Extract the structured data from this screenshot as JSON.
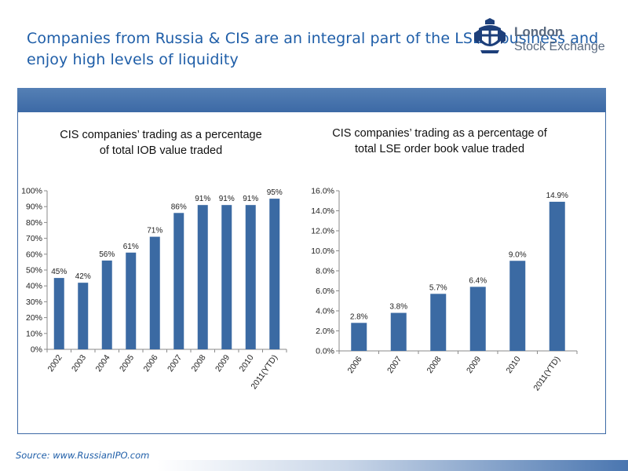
{
  "slide": {
    "title": "Companies from Russia & CIS are an integral part of the LSE’s business and enjoy high levels of liquidity",
    "source": "Source: www.RussianIPO.com"
  },
  "logo": {
    "line1": "London",
    "line2": "Stock Exchange",
    "icon": "lse-crest-icon"
  },
  "colors": {
    "bar": "#3b6aa3",
    "title": "#1f5ea8",
    "header_bar": "#4a76b0"
  },
  "chart_data": [
    {
      "type": "bar",
      "title": "CIS companies’ trading as a percentage\nof total IOB value traded",
      "categories": [
        "2002",
        "2003",
        "2004",
        "2005",
        "2006",
        "2007",
        "2008",
        "2009",
        "2010",
        "2011(YTD)"
      ],
      "values": [
        45,
        42,
        56,
        61,
        71,
        86,
        91,
        91,
        91,
        95
      ],
      "value_labels": [
        "45%",
        "42%",
        "56%",
        "61%",
        "71%",
        "86%",
        "91%",
        "91%",
        "91%",
        "95%"
      ],
      "yticks": [
        "0%",
        "10%",
        "20%",
        "30%",
        "40%",
        "50%",
        "60%",
        "70%",
        "80%",
        "90%",
        "100%"
      ],
      "ylim": [
        0,
        100
      ],
      "grid": false,
      "legend": "none"
    },
    {
      "type": "bar",
      "title": "CIS companies’ trading as a percentage of\ntotal LSE order book value traded",
      "categories": [
        "2006",
        "2007",
        "2008",
        "2009",
        "2010",
        "2011(YTD)"
      ],
      "values": [
        2.8,
        3.8,
        5.7,
        6.4,
        9.0,
        14.9
      ],
      "value_labels": [
        "2.8%",
        "3.8%",
        "5.7%",
        "6.4%",
        "9.0%",
        "14.9%"
      ],
      "yticks": [
        "0.0%",
        "2.0%",
        "4.0%",
        "6.0%",
        "8.0%",
        "10.0%",
        "12.0%",
        "14.0%",
        "16.0%"
      ],
      "ylim": [
        0,
        16
      ],
      "grid": false,
      "legend": "none"
    }
  ]
}
